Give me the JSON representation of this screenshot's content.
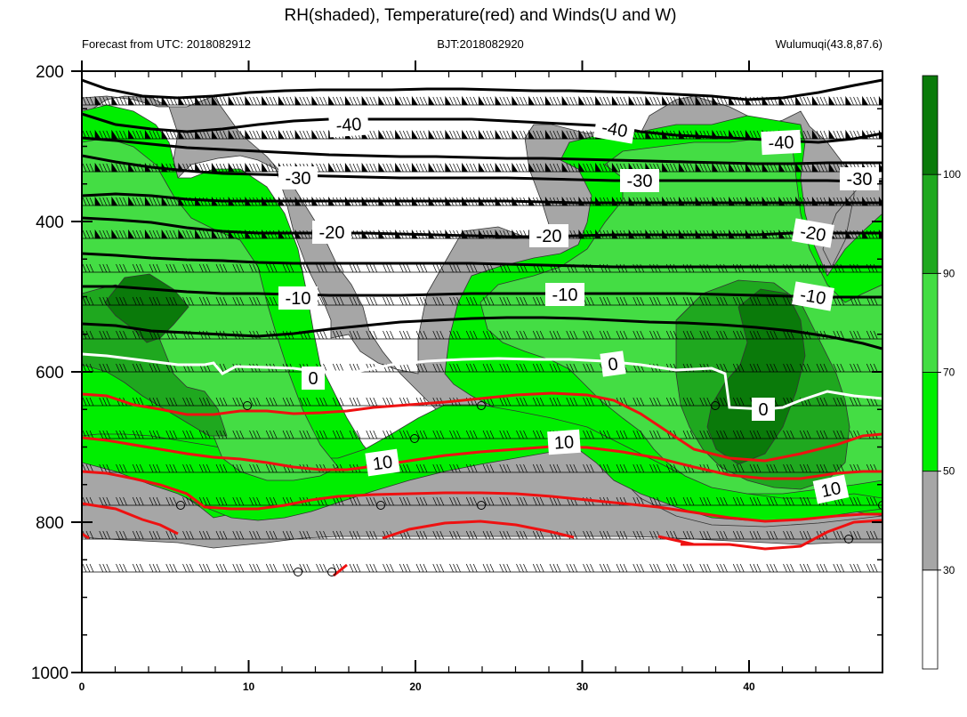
{
  "title": "RH(shaded), Temperature(red) and Winds(U and W)",
  "subtitle_left": "Forecast from UTC: 2018082912",
  "subtitle_center": "BJT:2018082920",
  "subtitle_right": "Wulumuqi(43.8,87.6)",
  "chart_data": {
    "type": "heatmap",
    "x_ticks": [
      0,
      10,
      20,
      30,
      40
    ],
    "xlim": [
      0,
      48
    ],
    "y_ticks": [
      200,
      400,
      600,
      800,
      1000
    ],
    "ylim": [
      200,
      1000
    ],
    "y_reversed": true,
    "colorbar": {
      "ticks": [
        30,
        50,
        70,
        90,
        100
      ],
      "levels": [
        {
          "from": 0,
          "to": 30,
          "color": "#ffffff"
        },
        {
          "from": 30,
          "to": 50,
          "color": "#a6a6a6"
        },
        {
          "from": 50,
          "to": 70,
          "color": "#00ee00"
        },
        {
          "from": 70,
          "to": 90,
          "color": "#44dd44"
        },
        {
          "from": 90,
          "to": 100,
          "color": "#1fa81f"
        },
        {
          "from": 100,
          "to": 110,
          "color": "#0a7a0a"
        }
      ]
    },
    "temperature_labels": {
      "black": [
        "-40",
        "-40",
        "-40",
        "-30",
        "-30",
        "-30",
        "-20",
        "-20",
        "-20",
        "-10",
        "-10",
        "-10"
      ],
      "white": [
        "0",
        "0",
        "0"
      ],
      "red": [
        "10",
        "10",
        "10"
      ]
    }
  }
}
